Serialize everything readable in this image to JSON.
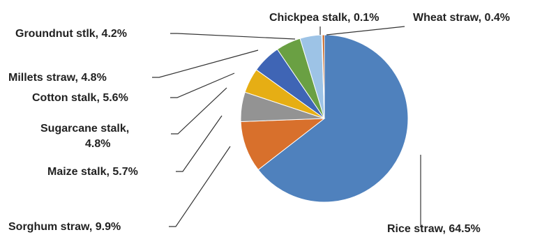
{
  "chart_data": {
    "type": "pie",
    "slices": [
      {
        "label": "Rice straw, 64.5%",
        "value": 64.5,
        "color": "#4F81BD"
      },
      {
        "label": "Sorghum straw, 9.9%",
        "value": 9.9,
        "color": "#D8702C"
      },
      {
        "label": "Maize stalk, 5.7%",
        "value": 5.7,
        "color": "#939393"
      },
      {
        "label": "Sugarcane stalk, 4.8%",
        "value": 4.8,
        "color": "#E6AE14"
      },
      {
        "label": "Cotton stalk, 5.6%",
        "value": 5.6,
        "color": "#3F65B5"
      },
      {
        "label": "Millets straw, 4.8%",
        "value": 4.8,
        "color": "#6AA043"
      },
      {
        "label": "Groundnut stlk, 4.2%",
        "value": 4.2,
        "color": "#9DC3E6"
      },
      {
        "label": "Chickpea stalk, 0.1%",
        "value": 0.1,
        "color": "#D9D9D9"
      },
      {
        "label": "Wheat straw, 0.4%",
        "value": 0.4,
        "color": "#C55A11"
      }
    ],
    "label_lines": {
      "Sugarcane stalk, 4.8%": [
        "Sugarcane stalk,",
        "4.8%"
      ]
    }
  }
}
